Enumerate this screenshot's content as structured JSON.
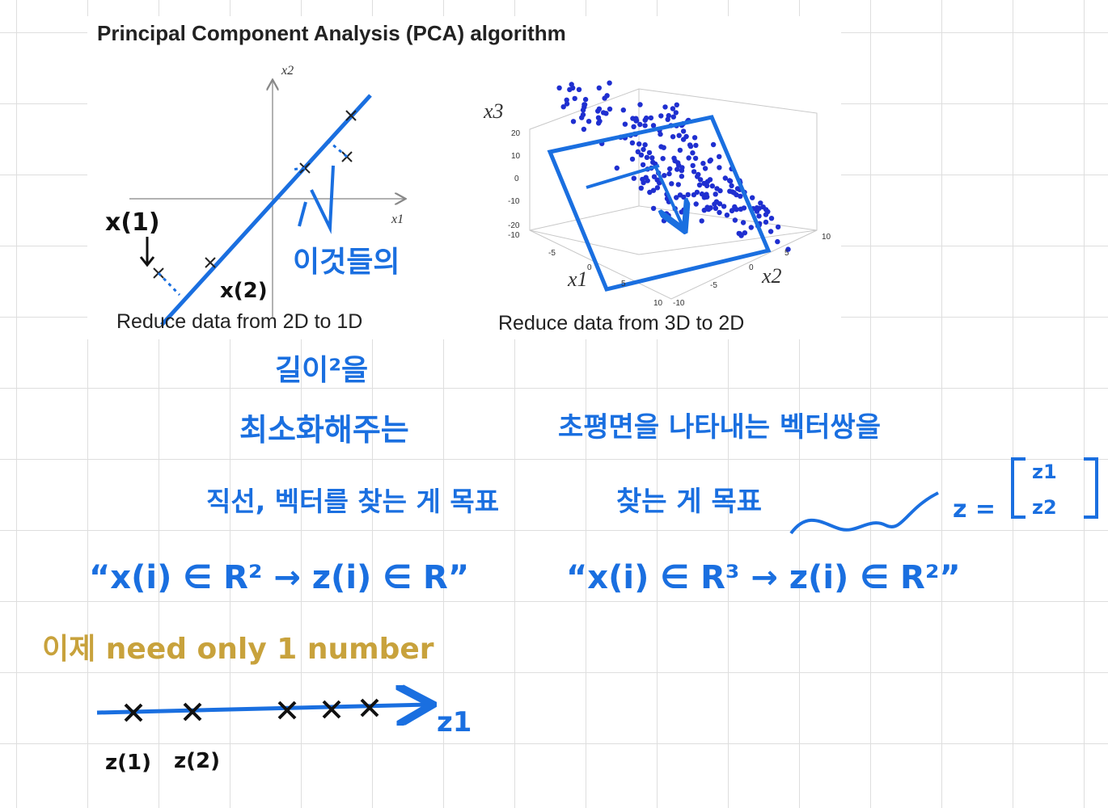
{
  "slide": {
    "title": "Principal Component Analysis (PCA) algorithm",
    "left_plot": {
      "x_label": "x1",
      "y_label": "x2",
      "caption": "Reduce data from 2D to 1D"
    },
    "right_plot": {
      "x1_label": "x1",
      "x2_label": "x2",
      "x3_label": "x3",
      "caption": "Reduce data from 3D to 2D",
      "x3_ticks": [
        "20",
        "10",
        "0",
        "-10",
        "-20"
      ],
      "x1_ticks": [
        "-10",
        "-5",
        "0",
        "5",
        "10"
      ],
      "x2_ticks": [
        "-10",
        "-5",
        "0",
        "5",
        "10"
      ]
    }
  },
  "notes": {
    "x1_point": "x(1)",
    "x2_point": "x(2)",
    "these": "이것들의",
    "length": "길이²을",
    "minimize": "최소화해주는",
    "goal_line": "직선, 벡터를 찾는 게 목표",
    "goal_plane_1": "초평면을 나타내는 벡터쌍을",
    "goal_plane_2": "찾는 게 목표",
    "z_eq": "z =",
    "z_1": "z1",
    "z_2": "z2",
    "map_2d": "“x(i) ∈ R² → z(i) ∈ R”",
    "map_3d": "“x(i) ∈ R³ → z(i) ∈ R²”",
    "now": "이제 need only 1 number",
    "axis_label": "z1",
    "z1_point": "z(1)",
    "z2_point": "z(2)"
  }
}
